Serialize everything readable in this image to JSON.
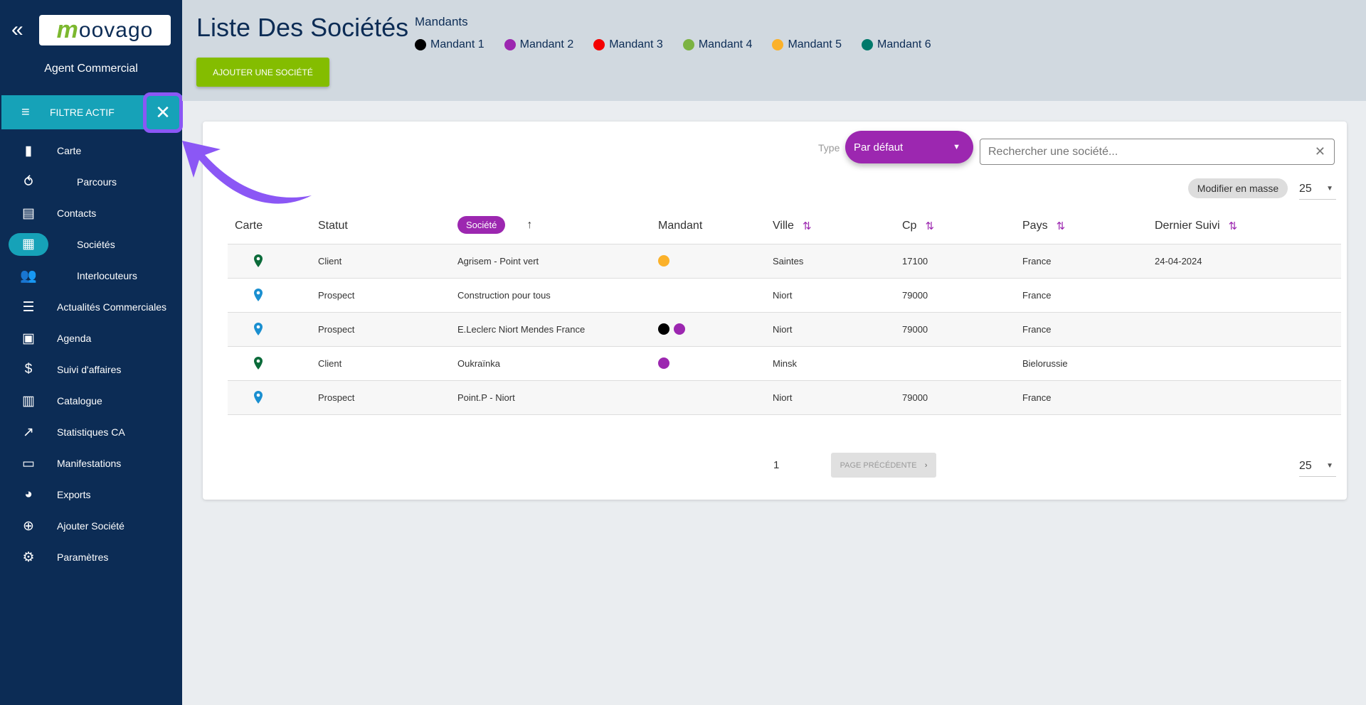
{
  "sidebar": {
    "brand": "oovago",
    "brand_initial": "m",
    "role": "Agent Commercial",
    "filter": {
      "label": "Filtre actif"
    },
    "items": [
      {
        "label": "Carte",
        "icon": "map-icon",
        "glyph": "▮"
      },
      {
        "label": "Parcours",
        "icon": "route-icon",
        "glyph": "⥀",
        "sub": true
      },
      {
        "label": "Contacts",
        "icon": "contacts-icon",
        "glyph": "▤"
      },
      {
        "label": "Sociétés",
        "icon": "building-icon",
        "glyph": "▦",
        "sub": true,
        "active": true
      },
      {
        "label": "Interlocuteurs",
        "icon": "people-icon",
        "glyph": "👥",
        "sub": true
      },
      {
        "label": "Actualités Commerciales",
        "icon": "list-icon",
        "glyph": "☰"
      },
      {
        "label": "Agenda",
        "icon": "calendar-icon",
        "glyph": "▣"
      },
      {
        "label": "Suivi d'affaires",
        "icon": "dollar-cycle-icon",
        "glyph": "$"
      },
      {
        "label": "Catalogue",
        "icon": "book-icon",
        "glyph": "▥"
      },
      {
        "label": "Statistiques CA",
        "icon": "stats-icon",
        "glyph": "↗"
      },
      {
        "label": "Manifestations",
        "icon": "briefcase-icon",
        "glyph": "▭"
      },
      {
        "label": "Exports",
        "icon": "pie-icon",
        "glyph": "◕"
      },
      {
        "label": "Ajouter Société",
        "icon": "add-circle-icon",
        "glyph": "⊕"
      },
      {
        "label": "Paramètres",
        "icon": "gear-icon",
        "glyph": "⚙"
      }
    ]
  },
  "header": {
    "title": "Liste Des Sociétés",
    "mandants_label": "Mandants",
    "mandants": [
      {
        "label": "Mandant 1",
        "color": "#000000"
      },
      {
        "label": "Mandant 2",
        "color": "#9c27b0"
      },
      {
        "label": "Mandant 3",
        "color": "#f40000"
      },
      {
        "label": "Mandant 4",
        "color": "#7cb342"
      },
      {
        "label": "Mandant 5",
        "color": "#fbb12a"
      },
      {
        "label": "Mandant 6",
        "color": "#00796b"
      }
    ],
    "add_button": "Ajouter une société"
  },
  "toolbar": {
    "type_label": "Type",
    "type_value": "Par défaut",
    "search_placeholder": "Rechercher une société...",
    "bulk_edit": "Modifier en masse",
    "per_page": "25"
  },
  "table": {
    "columns": [
      "Carte",
      "Statut",
      "Société",
      "Mandant",
      "Ville",
      "Cp",
      "Pays",
      "Dernier Suivi"
    ],
    "rows": [
      {
        "pin": "#0b6b3a",
        "statut": "Client",
        "societe": "Agrisem - Point vert",
        "mandants": [
          "#fbb12a"
        ],
        "ville": "Saintes",
        "cp": "17100",
        "pays": "France",
        "suivi": "24-04-2024"
      },
      {
        "pin": "#1a8fd0",
        "statut": "Prospect",
        "societe": "Construction pour tous",
        "mandants": [],
        "ville": "Niort",
        "cp": "79000",
        "pays": "France",
        "suivi": ""
      },
      {
        "pin": "#1a8fd0",
        "statut": "Prospect",
        "societe": "E.Leclerc Niort Mendes France",
        "mandants": [
          "#000000",
          "#9c27b0"
        ],
        "ville": "Niort",
        "cp": "79000",
        "pays": "France",
        "suivi": ""
      },
      {
        "pin": "#0b6b3a",
        "statut": "Client",
        "societe": "Oukraïnka",
        "mandants": [
          "#9c27b0"
        ],
        "ville": "Minsk",
        "cp": "",
        "pays": "Bielorussie",
        "suivi": ""
      },
      {
        "pin": "#1a8fd0",
        "statut": "Prospect",
        "societe": "Point.P - Niort",
        "mandants": [],
        "ville": "Niort",
        "cp": "79000",
        "pays": "France",
        "suivi": ""
      }
    ]
  },
  "pagination": {
    "page": "1",
    "prev": "Page précédente",
    "per_page": "25"
  }
}
